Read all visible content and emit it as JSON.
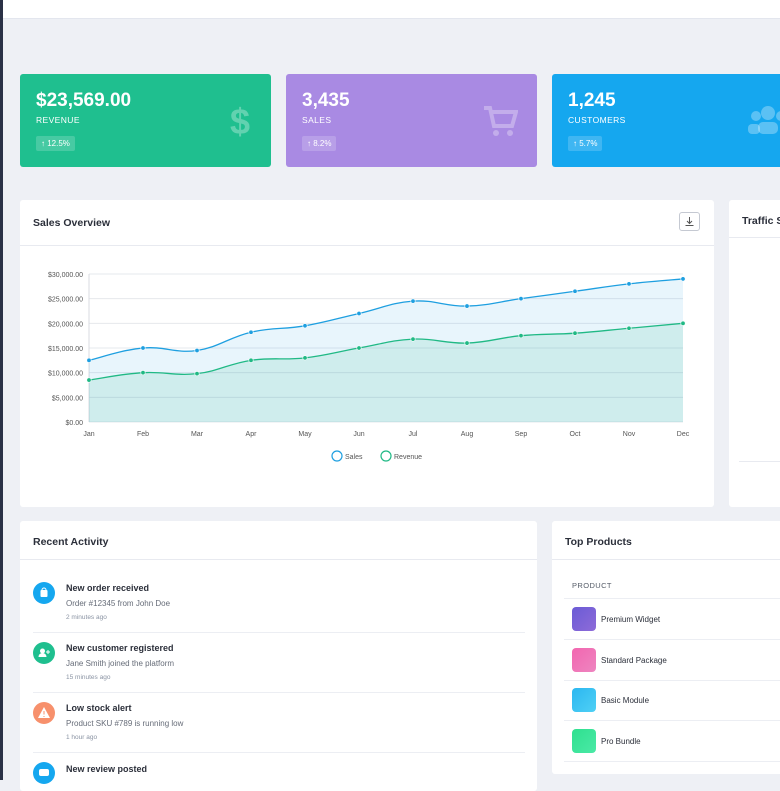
{
  "stats": [
    {
      "value": "$23,569.00",
      "label": "REVENUE",
      "change": "↑ 12.5%"
    },
    {
      "value": "3,435",
      "label": "SALES",
      "change": "↑ 8.2%"
    },
    {
      "value": "1,245",
      "label": "CUSTOMERS",
      "change": "↑ 5.7%"
    }
  ],
  "sales_overview": {
    "title": "Sales Overview",
    "chart_data": {
      "type": "line",
      "categories": [
        "Jan",
        "Feb",
        "Mar",
        "Apr",
        "May",
        "Jun",
        "Jul",
        "Aug",
        "Sep",
        "Oct",
        "Nov",
        "Dec"
      ],
      "series": [
        {
          "name": "Sales",
          "color": "#1e9fe0",
          "values": [
            12500,
            15000,
            14500,
            18200,
            19500,
            22000,
            24500,
            23500,
            25000,
            26500,
            28000,
            29000
          ]
        },
        {
          "name": "Revenue",
          "color": "#20b985",
          "values": [
            8500,
            10000,
            9800,
            12500,
            13000,
            15000,
            16800,
            16000,
            17500,
            18000,
            19000,
            20000
          ]
        }
      ],
      "ylim": [
        0,
        30000
      ],
      "yticks": [
        {
          "value": 0,
          "label": "$0.00"
        },
        {
          "value": 5000,
          "label": "$5,000.00"
        },
        {
          "value": 10000,
          "label": "$10,000.00"
        },
        {
          "value": 15000,
          "label": "$15,000.00"
        },
        {
          "value": 20000,
          "label": "$20,000.00"
        },
        {
          "value": 25000,
          "label": "$25,000.00"
        },
        {
          "value": 30000,
          "label": "$30,000.00"
        }
      ],
      "grid": true,
      "legend": "bottom"
    }
  },
  "traffic": {
    "title": "Traffic S"
  },
  "recent_activity": {
    "title": "Recent Activity",
    "items": [
      {
        "title": "New order received",
        "description": "Order #12345 from John Doe",
        "time": "2 minutes ago"
      },
      {
        "title": "New customer registered",
        "description": "Jane Smith joined the platform",
        "time": "15 minutes ago"
      },
      {
        "title": "Low stock alert",
        "description": "Product SKU #789 is running low",
        "time": "1 hour ago"
      },
      {
        "title": "New review posted"
      }
    ]
  },
  "top_products": {
    "title": "Top Products",
    "header": "PRODUCT",
    "items": [
      "Premium Widget",
      "Standard Package",
      "Basic Module",
      "Pro Bundle"
    ]
  }
}
